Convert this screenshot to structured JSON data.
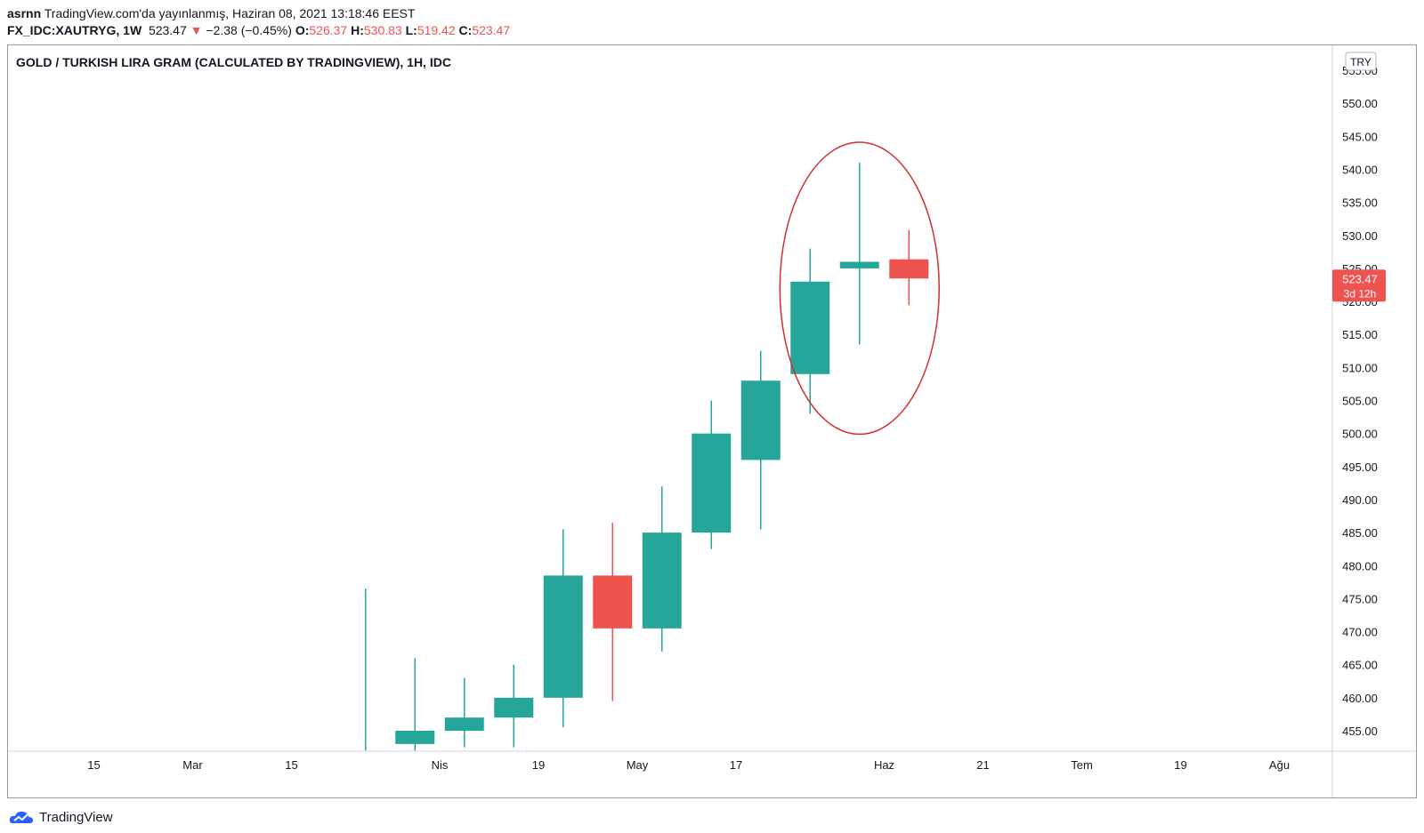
{
  "header": {
    "user": "asrnn",
    "published": "TradingView.com'da yayınlanmış, Haziran 08, 2021 13:18:46 EEST",
    "symbol": "FX_IDC:XAUTRYG, 1W",
    "last": "523.47",
    "change_arrow": "▼",
    "change": "−2.38 (−0.45%)",
    "open_label": "O:",
    "open": "526.37",
    "high_label": "H:",
    "high": "530.83",
    "low_label": "L:",
    "low": "519.42",
    "close_label": "C:",
    "close": "523.47"
  },
  "chart_title": "GOLD / TURKISH LIRA GRAM (CALCULATED BY TRADINGVIEW), 1H, IDC",
  "currency_badge": "TRY",
  "price_badge": {
    "price": "523.47",
    "countdown": "3d 12h"
  },
  "footer": {
    "brand": "TradingView",
    "logo_icon": "tradingview-cloud-icon"
  },
  "colors": {
    "up": "#26a69a",
    "down": "#ef5350",
    "annotation": "#d32f2f"
  },
  "chart_data": {
    "type": "candlestick",
    "y_ticks": [
      "455.00",
      "460.00",
      "465.00",
      "470.00",
      "475.00",
      "480.00",
      "485.00",
      "490.00",
      "495.00",
      "500.00",
      "505.00",
      "510.00",
      "515.00",
      "520.00",
      "525.00",
      "530.00",
      "535.00",
      "540.00",
      "545.00",
      "550.00",
      "555.00"
    ],
    "ylim": [
      452,
      558
    ],
    "x_labels": [
      {
        "label": "15",
        "week": -5
      },
      {
        "label": "Mar",
        "week": -3
      },
      {
        "label": "15",
        "week": -1
      },
      {
        "label": "Nis",
        "week": 2
      },
      {
        "label": "19",
        "week": 4
      },
      {
        "label": "May",
        "week": 6
      },
      {
        "label": "17",
        "week": 8
      },
      {
        "label": "Haz",
        "week": 11
      },
      {
        "label": "21",
        "week": 13
      },
      {
        "label": "Tem",
        "week": 15
      },
      {
        "label": "19",
        "week": 17
      },
      {
        "label": "Ağu",
        "week": 19
      }
    ],
    "candles": [
      {
        "week": 0.5,
        "open": 452,
        "high": 476.5,
        "low": 452,
        "close": 452
      },
      {
        "week": 1.5,
        "open": 453.0,
        "high": 466.0,
        "low": 452.0,
        "close": 455.0
      },
      {
        "week": 2.5,
        "open": 455.0,
        "high": 463.0,
        "low": 452.5,
        "close": 457.0
      },
      {
        "week": 3.5,
        "open": 457.0,
        "high": 465.0,
        "low": 452.5,
        "close": 460.0
      },
      {
        "week": 4.5,
        "open": 460.0,
        "high": 485.5,
        "low": 455.5,
        "close": 478.5
      },
      {
        "week": 5.5,
        "open": 478.5,
        "high": 486.5,
        "low": 459.5,
        "close": 470.5
      },
      {
        "week": 6.5,
        "open": 470.5,
        "high": 492.0,
        "low": 467.0,
        "close": 485.0
      },
      {
        "week": 7.5,
        "open": 485.0,
        "high": 505.0,
        "low": 482.5,
        "close": 500.0
      },
      {
        "week": 8.5,
        "open": 496.0,
        "high": 512.5,
        "low": 485.5,
        "close": 508.0
      },
      {
        "week": 9.5,
        "open": 509.0,
        "high": 528.0,
        "low": 503.0,
        "close": 523.0
      },
      {
        "week": 10.5,
        "open": 525.0,
        "high": 541.0,
        "low": 513.5,
        "close": 526.0
      },
      {
        "week": 11.5,
        "open": 526.37,
        "high": 530.83,
        "low": 519.42,
        "close": 523.47
      }
    ],
    "highlighted_weeks": [
      9.5,
      11.5
    ]
  }
}
